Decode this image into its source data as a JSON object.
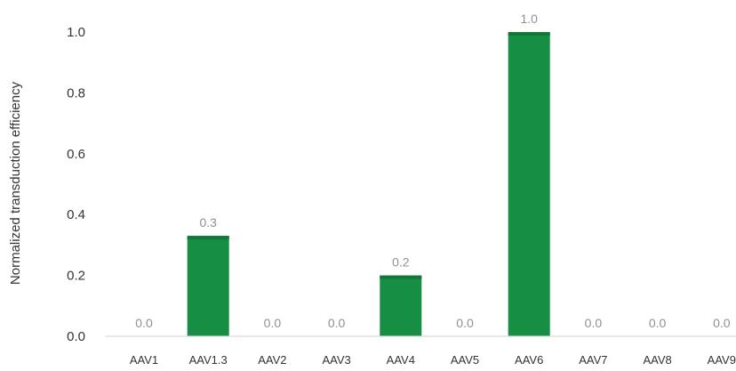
{
  "chart_data": {
    "type": "bar",
    "title": "",
    "xlabel": "",
    "ylabel": "Normalized transduction efficiency",
    "categories": [
      "AAV1",
      "AAV1.3",
      "AAV2",
      "AAV3",
      "AAV4",
      "AAV5",
      "AAV6",
      "AAV7",
      "AAV8",
      "AAV9"
    ],
    "values": [
      0.0,
      0.33,
      0.0,
      0.0,
      0.2,
      0.0,
      1.0,
      0.0,
      0.0,
      0.0
    ],
    "data_labels": [
      "0.0",
      "0.3",
      "0.0",
      "0.0",
      "0.2",
      "0.0",
      "1.0",
      "0.0",
      "0.0",
      "0.0"
    ],
    "y_ticks": [
      "0.0",
      "0.2",
      "0.4",
      "0.6",
      "0.8",
      "1.0"
    ],
    "ylim": [
      0,
      1.0
    ],
    "grid": false,
    "legend": "none",
    "colors": {
      "bar": "#168f44",
      "bar_top": "#0f7a37",
      "data_label": "#909090",
      "axis_line": "#d9d9d9",
      "text": "#333333"
    }
  }
}
